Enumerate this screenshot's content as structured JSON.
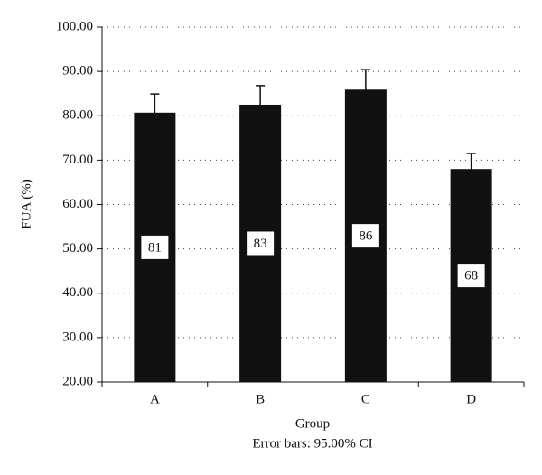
{
  "chart_data": {
    "type": "bar",
    "categories": [
      "A",
      "B",
      "C",
      "D"
    ],
    "values": [
      80.7,
      82.5,
      85.9,
      68.0
    ],
    "value_labels": [
      "81",
      "83",
      "86",
      "68"
    ],
    "errors": [
      4.2,
      4.3,
      4.5,
      3.5
    ],
    "color": "#111111",
    "x_label": "Group",
    "y_label": "FUA (%)",
    "note": "Error bars: 95.00% CI",
    "ylim": [
      20,
      100
    ],
    "yticks": [
      {
        "value": 20,
        "label": "20.00"
      },
      {
        "value": 30,
        "label": "30.00"
      },
      {
        "value": 40,
        "label": "40.00"
      },
      {
        "value": 50,
        "label": "50.00"
      },
      {
        "value": 60,
        "label": "60.00"
      },
      {
        "value": 70,
        "label": "70.00"
      },
      {
        "value": 80,
        "label": "80.00"
      },
      {
        "value": 90,
        "label": "90.00"
      },
      {
        "value": 100,
        "label": "100.00"
      }
    ],
    "grid": true
  }
}
